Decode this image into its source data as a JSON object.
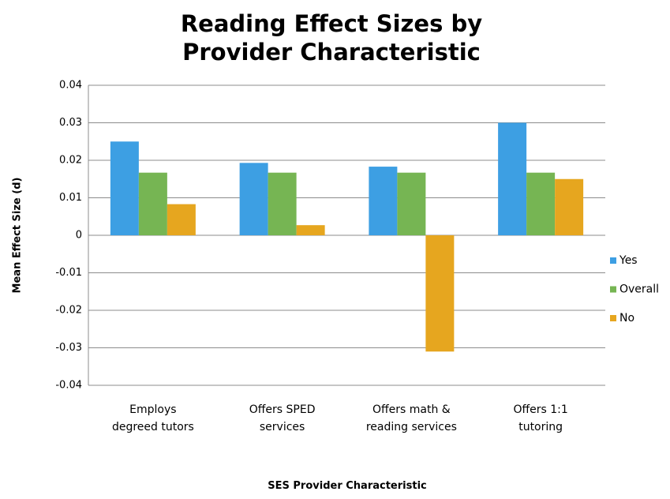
{
  "chart_data": {
    "type": "bar",
    "title": "Reading Effect Sizes by Provider Characteristic",
    "xlabel": "SES Provider Characteristic",
    "ylabel": "Mean Effect Size (d)",
    "categories": [
      "Employs degreed tutors",
      "Offers SPED services",
      "Offers math & reading services",
      "Offers 1:1 tutoring"
    ],
    "series": [
      {
        "name": "Yes",
        "color": "#3d9fe3",
        "values": [
          0.025,
          0.0193,
          0.0183,
          0.03
        ]
      },
      {
        "name": "Overall",
        "color": "#76b553",
        "values": [
          0.0167,
          0.0167,
          0.0167,
          0.0167
        ]
      },
      {
        "name": "No",
        "color": "#e6a61f",
        "values": [
          0.0083,
          0.0027,
          -0.031,
          0.015
        ]
      }
    ],
    "ylim": [
      -0.04,
      0.04
    ],
    "yticks": [
      -0.04,
      -0.03,
      -0.02,
      -0.01,
      0,
      0.01,
      0.02,
      0.03,
      0.04
    ],
    "grid": true,
    "legend": "right"
  }
}
